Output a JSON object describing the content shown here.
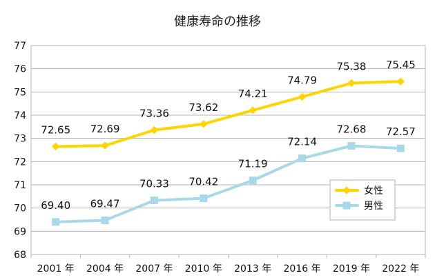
{
  "chart_data": {
    "type": "line",
    "title": "健康寿命の推移",
    "categories": [
      "2001 年",
      "2004 年",
      "2007 年",
      "2010 年",
      "2013 年",
      "2016 年",
      "2019 年",
      "2022 年"
    ],
    "yticks": [
      "68",
      "69",
      "70",
      "71",
      "72",
      "73",
      "74",
      "75",
      "76",
      "77"
    ],
    "ylim": [
      68,
      77
    ],
    "xlabel": "",
    "ylabel": "",
    "grid": true,
    "legend_position": "right",
    "series": [
      {
        "name": "女性",
        "color": "#FFD400",
        "marker": "diamond",
        "values": [
          72.65,
          72.69,
          73.36,
          73.62,
          74.21,
          74.79,
          75.38,
          75.45
        ],
        "labels": [
          "72.65",
          "72.69",
          "73.36",
          "73.62",
          "74.21",
          "74.79",
          "75.38",
          "75.45"
        ]
      },
      {
        "name": "男性",
        "color": "#A9D8E8",
        "marker": "square",
        "values": [
          69.4,
          69.47,
          70.33,
          70.42,
          71.19,
          72.14,
          72.68,
          72.57
        ],
        "labels": [
          "69.40",
          "69.47",
          "70.33",
          "70.42",
          "71.19",
          "72.14",
          "72.68",
          "72.57"
        ]
      }
    ]
  }
}
